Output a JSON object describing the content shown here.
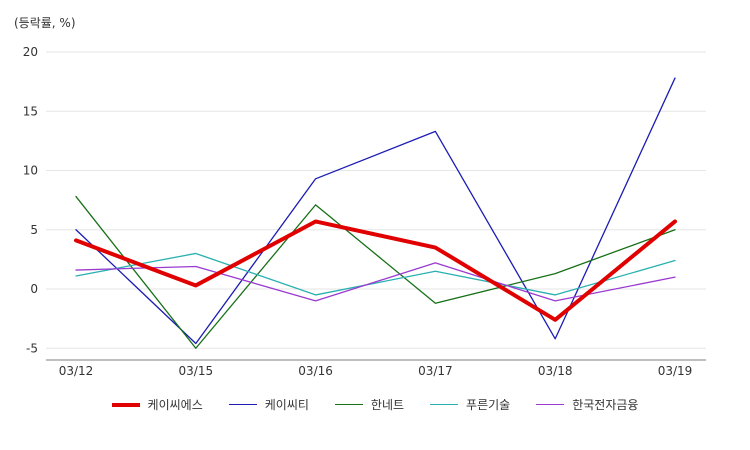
{
  "unit_label": "(등락률, %)",
  "chart_data": {
    "type": "line",
    "categories": [
      "03/12",
      "03/15",
      "03/16",
      "03/17",
      "03/18",
      "03/19"
    ],
    "ylim": [
      -6,
      22
    ],
    "yticks": [
      -5,
      0,
      5,
      10,
      15,
      20
    ],
    "grid": true,
    "legend_position": "bottom",
    "series": [
      {
        "name": "케이씨에스",
        "color": "#e00000",
        "emphasis": true,
        "values": [
          4.1,
          0.3,
          5.7,
          3.5,
          -2.6,
          5.7
        ]
      },
      {
        "name": "케이씨티",
        "color": "#1c1cb5",
        "emphasis": false,
        "values": [
          5.0,
          -4.6,
          9.3,
          13.3,
          -4.2,
          17.8
        ]
      },
      {
        "name": "한네트",
        "color": "#167016",
        "emphasis": false,
        "values": [
          7.8,
          -5.0,
          7.1,
          -1.2,
          1.3,
          5.0
        ]
      },
      {
        "name": "푸른기술",
        "color": "#2ab0b0",
        "emphasis": false,
        "values": [
          1.1,
          3.0,
          -0.5,
          1.5,
          -0.5,
          2.4
        ]
      },
      {
        "name": "한국전자금융",
        "color": "#9a3ad0",
        "emphasis": false,
        "values": [
          1.6,
          1.9,
          -1.0,
          2.2,
          -1.0,
          1.0
        ]
      }
    ]
  }
}
